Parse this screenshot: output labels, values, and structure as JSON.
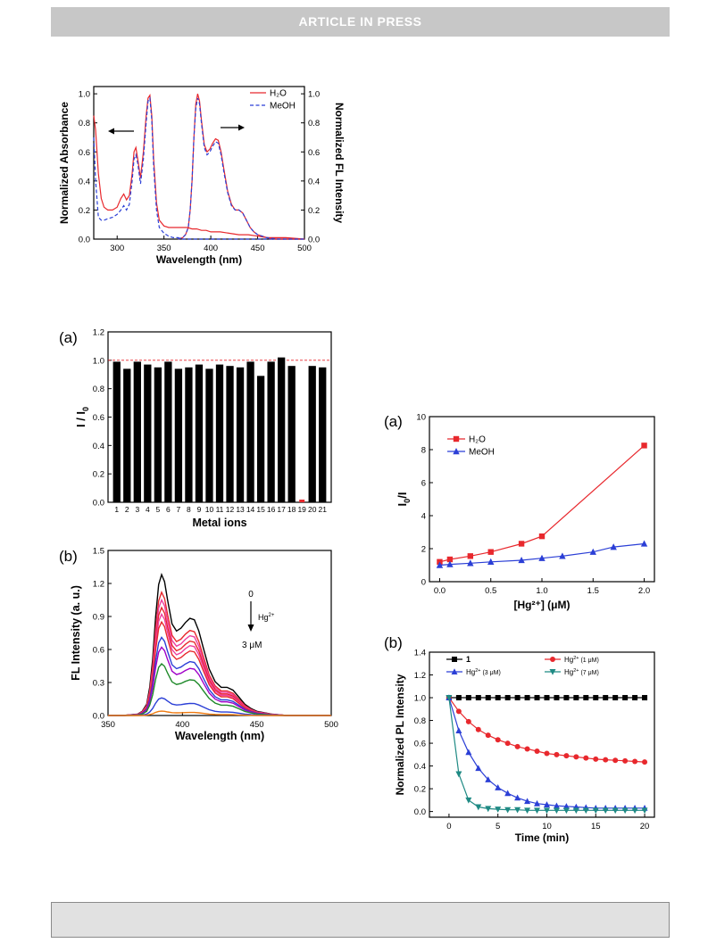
{
  "header": {
    "text": "ARTICLE  IN  PRESS"
  },
  "chart_data": [
    {
      "type": "line",
      "panel_label": "",
      "xlabel": "Wavelength (nm)",
      "ylabel_left": "Normalized Absorbance",
      "ylabel_right": "Normalized FL Intensity",
      "xlim": [
        275,
        500
      ],
      "ylim": [
        0,
        1.05
      ],
      "xticks": [
        300,
        350,
        400,
        450,
        500
      ],
      "yticks": [
        0.0,
        0.2,
        0.4,
        0.6,
        0.8,
        1.0
      ],
      "legend_position": "top-right",
      "colors": {
        "H2O": "#e8282d",
        "MeOH": "#2b3fd6"
      },
      "series": [
        {
          "name": "H₂O",
          "group": "absorbance",
          "style": "solid",
          "x": [
            275,
            277,
            280,
            283,
            286,
            290,
            295,
            300,
            304,
            307,
            310,
            313,
            316,
            318,
            320,
            322,
            325,
            328,
            331,
            333,
            335,
            337,
            339,
            342,
            345,
            350,
            355,
            360,
            365,
            370,
            375,
            380,
            385,
            390,
            395,
            400,
            410,
            420,
            430,
            440,
            450,
            460,
            480,
            500
          ],
          "y": [
            0.85,
            0.75,
            0.45,
            0.28,
            0.22,
            0.2,
            0.2,
            0.22,
            0.28,
            0.31,
            0.27,
            0.3,
            0.45,
            0.6,
            0.63,
            0.55,
            0.42,
            0.6,
            0.85,
            0.97,
            0.99,
            0.85,
            0.55,
            0.25,
            0.13,
            0.09,
            0.08,
            0.08,
            0.08,
            0.08,
            0.08,
            0.07,
            0.07,
            0.06,
            0.06,
            0.05,
            0.05,
            0.04,
            0.03,
            0.03,
            0.02,
            0.01,
            0.01,
            0.0
          ]
        },
        {
          "name": "MeOH",
          "group": "absorbance",
          "style": "dashed",
          "x": [
            275,
            277,
            280,
            283,
            286,
            290,
            295,
            300,
            304,
            307,
            310,
            313,
            316,
            318,
            320,
            322,
            325,
            328,
            331,
            333,
            335,
            337,
            339,
            342,
            345,
            350,
            355,
            360,
            365,
            370,
            380,
            400,
            450,
            500
          ],
          "y": [
            0.7,
            0.4,
            0.15,
            0.13,
            0.13,
            0.14,
            0.15,
            0.17,
            0.2,
            0.23,
            0.2,
            0.24,
            0.4,
            0.55,
            0.58,
            0.52,
            0.38,
            0.55,
            0.8,
            0.95,
            0.97,
            0.82,
            0.5,
            0.2,
            0.08,
            0.04,
            0.02,
            0.01,
            0.01,
            0.0,
            0.0,
            0.0,
            0.0,
            0.0
          ]
        },
        {
          "name": "H₂O",
          "group": "fluorescence",
          "style": "solid",
          "x": [
            365,
            370,
            373,
            376,
            378,
            380,
            382,
            384,
            386,
            388,
            390,
            393,
            396,
            399,
            402,
            405,
            408,
            411,
            414,
            418,
            422,
            426,
            430,
            434,
            438,
            442,
            446,
            450,
            460,
            470,
            480,
            490,
            500
          ],
          "y": [
            0.0,
            0.01,
            0.03,
            0.08,
            0.2,
            0.4,
            0.7,
            0.93,
            1.0,
            0.95,
            0.82,
            0.65,
            0.6,
            0.62,
            0.66,
            0.69,
            0.68,
            0.6,
            0.48,
            0.33,
            0.24,
            0.2,
            0.2,
            0.18,
            0.13,
            0.08,
            0.05,
            0.03,
            0.01,
            0.0,
            0.0,
            0.0,
            0.0
          ]
        },
        {
          "name": "MeOH",
          "group": "fluorescence",
          "style": "dashed",
          "x": [
            365,
            370,
            373,
            376,
            378,
            380,
            382,
            384,
            386,
            388,
            390,
            393,
            396,
            399,
            402,
            405,
            408,
            411,
            414,
            418,
            422,
            426,
            430,
            434,
            438,
            442,
            446,
            450,
            460,
            470,
            480,
            490,
            500
          ],
          "y": [
            0.0,
            0.01,
            0.03,
            0.08,
            0.2,
            0.4,
            0.7,
            0.9,
            0.97,
            0.93,
            0.8,
            0.63,
            0.58,
            0.6,
            0.64,
            0.67,
            0.66,
            0.58,
            0.46,
            0.32,
            0.23,
            0.2,
            0.2,
            0.18,
            0.13,
            0.08,
            0.05,
            0.03,
            0.01,
            0.0,
            0.0,
            0.0,
            0.0
          ]
        }
      ]
    },
    {
      "type": "bar",
      "panel_label": "(a)",
      "xlabel": "Metal ions",
      "ylabel": "I / I",
      "ylabel_sub": "0",
      "ylim": [
        0,
        1.2
      ],
      "yticks": [
        0.0,
        0.2,
        0.4,
        0.6,
        0.8,
        1.0,
        1.2
      ],
      "reference_line": 1.0,
      "colors": {
        "bar": "#000000",
        "highlight": "#e8282d",
        "reference": "#e8282d"
      },
      "categories": [
        "1",
        "2",
        "3",
        "4",
        "5",
        "6",
        "7",
        "8",
        "9",
        "10",
        "11",
        "12",
        "13",
        "14",
        "15",
        "16",
        "17",
        "18",
        "19",
        "20",
        "21"
      ],
      "values": [
        0.99,
        0.94,
        0.99,
        0.97,
        0.95,
        0.99,
        0.94,
        0.95,
        0.97,
        0.94,
        0.97,
        0.96,
        0.95,
        0.99,
        0.89,
        0.99,
        1.02,
        0.96,
        0.0,
        0.96,
        0.95
      ],
      "highlight_index": 18
    },
    {
      "type": "line",
      "panel_label": "(b)",
      "xlabel": "Wavelength (nm)",
      "ylabel": "FL Intensity (a. u.)",
      "xlim": [
        350,
        500
      ],
      "ylim": [
        0,
        1.5
      ],
      "xticks": [
        350,
        400,
        450,
        500
      ],
      "yticks": [
        0.0,
        0.3,
        0.6,
        0.9,
        1.2,
        1.5
      ],
      "annotation": {
        "top": "0",
        "label": "Hg",
        "sup": "2+",
        "bottom": "3 μM"
      },
      "base_shape_x": [
        350,
        360,
        365,
        370,
        373,
        376,
        378,
        380,
        382,
        384,
        386,
        388,
        390,
        393,
        396,
        399,
        402,
        405,
        408,
        411,
        414,
        418,
        422,
        426,
        430,
        434,
        438,
        442,
        446,
        450,
        460,
        470,
        480,
        500
      ],
      "base_shape_y": [
        0.0,
        0.0,
        0.005,
        0.01,
        0.03,
        0.08,
        0.2,
        0.4,
        0.7,
        0.93,
        1.0,
        0.95,
        0.82,
        0.65,
        0.6,
        0.62,
        0.66,
        0.69,
        0.68,
        0.6,
        0.48,
        0.33,
        0.24,
        0.2,
        0.2,
        0.18,
        0.13,
        0.08,
        0.05,
        0.03,
        0.01,
        0.0,
        0.0,
        0.0
      ],
      "series": [
        {
          "peak": 1.28,
          "color": "#000000"
        },
        {
          "peak": 1.12,
          "color": "#e8282d"
        },
        {
          "peak": 1.05,
          "color": "#ee3fa0"
        },
        {
          "peak": 0.98,
          "color": "#e8282d"
        },
        {
          "peak": 0.92,
          "color": "#ee3fa0"
        },
        {
          "peak": 0.85,
          "color": "#e8282d"
        },
        {
          "peak": 0.71,
          "color": "#2b3fd6"
        },
        {
          "peak": 0.62,
          "color": "#a000c8"
        },
        {
          "peak": 0.47,
          "color": "#1f8a2a"
        },
        {
          "peak": 0.16,
          "color": "#2b3fd6"
        },
        {
          "peak": 0.04,
          "color": "#f07a10"
        }
      ]
    },
    {
      "type": "line",
      "panel_label": "(a)",
      "xlabel": "[Hg²⁺] (μM)",
      "ylabel": "I",
      "ylabel_sub": "0",
      "ylabel_tail": "/I",
      "xlim": [
        -0.1,
        2.1
      ],
      "ylim": [
        0,
        10
      ],
      "xticks": [
        0.0,
        0.5,
        1.0,
        1.5,
        2.0
      ],
      "yticks": [
        0,
        2,
        4,
        6,
        8,
        10
      ],
      "legend_position": "top-left",
      "series": [
        {
          "name": "H₂O",
          "color": "#e8282d",
          "marker": "square",
          "x": [
            0,
            0.1,
            0.3,
            0.5,
            0.8,
            1.0,
            2.0
          ],
          "y": [
            1.2,
            1.35,
            1.55,
            1.8,
            2.3,
            2.75,
            8.25
          ]
        },
        {
          "name": "MeOH",
          "color": "#2b3fd6",
          "marker": "triangle",
          "x": [
            0,
            0.1,
            0.3,
            0.5,
            0.8,
            1.0,
            1.2,
            1.5,
            1.7,
            2.0
          ],
          "y": [
            1.0,
            1.05,
            1.12,
            1.2,
            1.3,
            1.42,
            1.55,
            1.8,
            2.1,
            2.3
          ]
        }
      ]
    },
    {
      "type": "line",
      "panel_label": "(b)",
      "xlabel": "Time (min)",
      "ylabel": "Normalized PL Intensity",
      "xlim": [
        -2,
        21
      ],
      "ylim": [
        -0.05,
        1.4
      ],
      "xticks": [
        0,
        5,
        10,
        15,
        20
      ],
      "yticks": [
        0.0,
        0.2,
        0.4,
        0.6,
        0.8,
        1.0,
        1.2,
        1.4
      ],
      "legend_position": "top",
      "series": [
        {
          "name": "1",
          "color": "#000000",
          "marker": "square",
          "x": [
            0,
            1,
            2,
            3,
            4,
            5,
            6,
            7,
            8,
            9,
            10,
            11,
            12,
            13,
            14,
            15,
            16,
            17,
            18,
            19,
            20
          ],
          "y": [
            1,
            1,
            1,
            1,
            1,
            1,
            1,
            1,
            1,
            1,
            1,
            1,
            1,
            1,
            1,
            1,
            1,
            1,
            1,
            1,
            1
          ]
        },
        {
          "name": "Hg",
          "sup": "2+",
          "conc": " (1 μM)",
          "color": "#e8282d",
          "marker": "circle",
          "x": [
            0,
            1,
            2,
            3,
            4,
            5,
            6,
            7,
            8,
            9,
            10,
            11,
            12,
            13,
            14,
            15,
            16,
            17,
            18,
            19,
            20
          ],
          "y": [
            1.0,
            0.88,
            0.79,
            0.72,
            0.67,
            0.63,
            0.6,
            0.57,
            0.55,
            0.53,
            0.51,
            0.5,
            0.49,
            0.48,
            0.47,
            0.46,
            0.455,
            0.45,
            0.445,
            0.44,
            0.435
          ]
        },
        {
          "name": "Hg",
          "sup": "2+",
          "conc": " (3 μM)",
          "color": "#2b3fd6",
          "marker": "triangle",
          "x": [
            0,
            1,
            2,
            3,
            4,
            5,
            6,
            7,
            8,
            9,
            10,
            11,
            12,
            13,
            14,
            15,
            16,
            17,
            18,
            19,
            20
          ],
          "y": [
            1.0,
            0.71,
            0.52,
            0.38,
            0.28,
            0.21,
            0.16,
            0.12,
            0.09,
            0.07,
            0.06,
            0.05,
            0.045,
            0.04,
            0.035,
            0.03,
            0.03,
            0.03,
            0.03,
            0.03,
            0.03
          ]
        },
        {
          "name": "Hg",
          "sup": "2+",
          "conc": " (7 μM)",
          "color": "#1f8a84",
          "marker": "triangle-down",
          "x": [
            0,
            1,
            2,
            3,
            4,
            5,
            6,
            7,
            8,
            9,
            10,
            11,
            12,
            13,
            14,
            15,
            16,
            17,
            18,
            19,
            20
          ],
          "y": [
            1.0,
            0.33,
            0.1,
            0.04,
            0.025,
            0.02,
            0.015,
            0.015,
            0.01,
            0.01,
            0.01,
            0.01,
            0.01,
            0.01,
            0.01,
            0.01,
            0.01,
            0.01,
            0.01,
            0.01,
            0.01
          ]
        }
      ]
    }
  ]
}
